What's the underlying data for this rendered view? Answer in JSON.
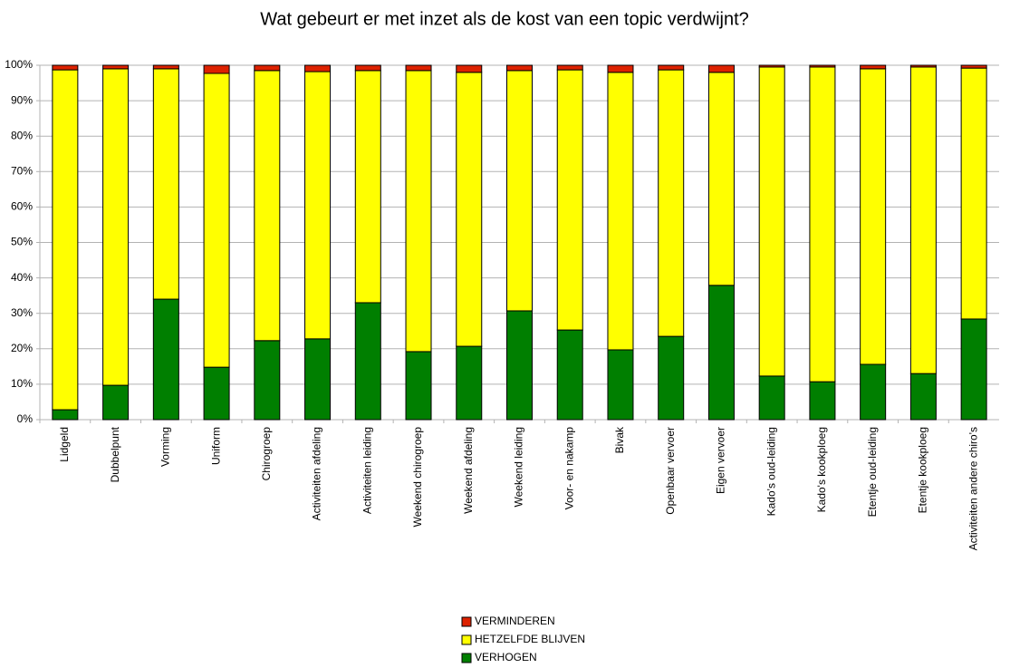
{
  "chart_data": {
    "type": "stacked_bar",
    "title": "Wat gebeurt er met inzet als de kost van een topic verdwijnt?",
    "categories": [
      "Lidgeld",
      "Dubbelpunt",
      "Vorming",
      "Uniform",
      "Chirogroep",
      "Activiteiten afdeling",
      "Activiteiten leiding",
      "Weekend chirogroep",
      "Weekend afdeling",
      "Weekend leiding",
      "Voor- en nakamp",
      "Bivak",
      "Openbaar vervoer",
      "Eigen vervoer",
      "Kado's oud-leiding",
      "Kado's kookploeg",
      "Etentje oud-leiding",
      "Etentje kookploeg",
      "Activiteiten andere chiro's"
    ],
    "series": [
      {
        "name": "VERHOGEN",
        "color": "#007f00",
        "values": [
          2.8,
          9.7,
          34.0,
          14.8,
          22.3,
          22.8,
          33.0,
          19.2,
          20.7,
          30.7,
          25.3,
          19.7,
          23.5,
          37.9,
          12.3,
          10.7,
          15.6,
          13.0,
          28.4
        ]
      },
      {
        "name": "HETZELFDE BLIJVEN",
        "color": "#ffff00",
        "values": [
          95.9,
          89.3,
          65.0,
          82.9,
          76.2,
          75.4,
          65.5,
          79.3,
          77.3,
          67.8,
          73.4,
          78.3,
          75.2,
          60.1,
          87.2,
          88.8,
          83.4,
          86.5,
          70.8
        ]
      },
      {
        "name": "VERMINDEREN",
        "color": "#dd2200",
        "values": [
          1.3,
          1.0,
          1.0,
          2.3,
          1.5,
          1.8,
          1.5,
          1.5,
          2.0,
          1.5,
          1.3,
          2.0,
          1.3,
          2.0,
          0.5,
          0.5,
          1.0,
          0.5,
          0.8
        ]
      }
    ],
    "ylim": [
      0,
      100
    ],
    "yticks": [
      {
        "value": 0,
        "label": "0%"
      },
      {
        "value": 10,
        "label": "10%"
      },
      {
        "value": 20,
        "label": "20%"
      },
      {
        "value": 30,
        "label": "30%"
      },
      {
        "value": 40,
        "label": "40%"
      },
      {
        "value": 50,
        "label": "50%"
      },
      {
        "value": 60,
        "label": "60%"
      },
      {
        "value": 70,
        "label": "70%"
      },
      {
        "value": 80,
        "label": "80%"
      },
      {
        "value": 90,
        "label": "90%"
      },
      {
        "value": 100,
        "label": "100%"
      }
    ],
    "grid": true
  }
}
